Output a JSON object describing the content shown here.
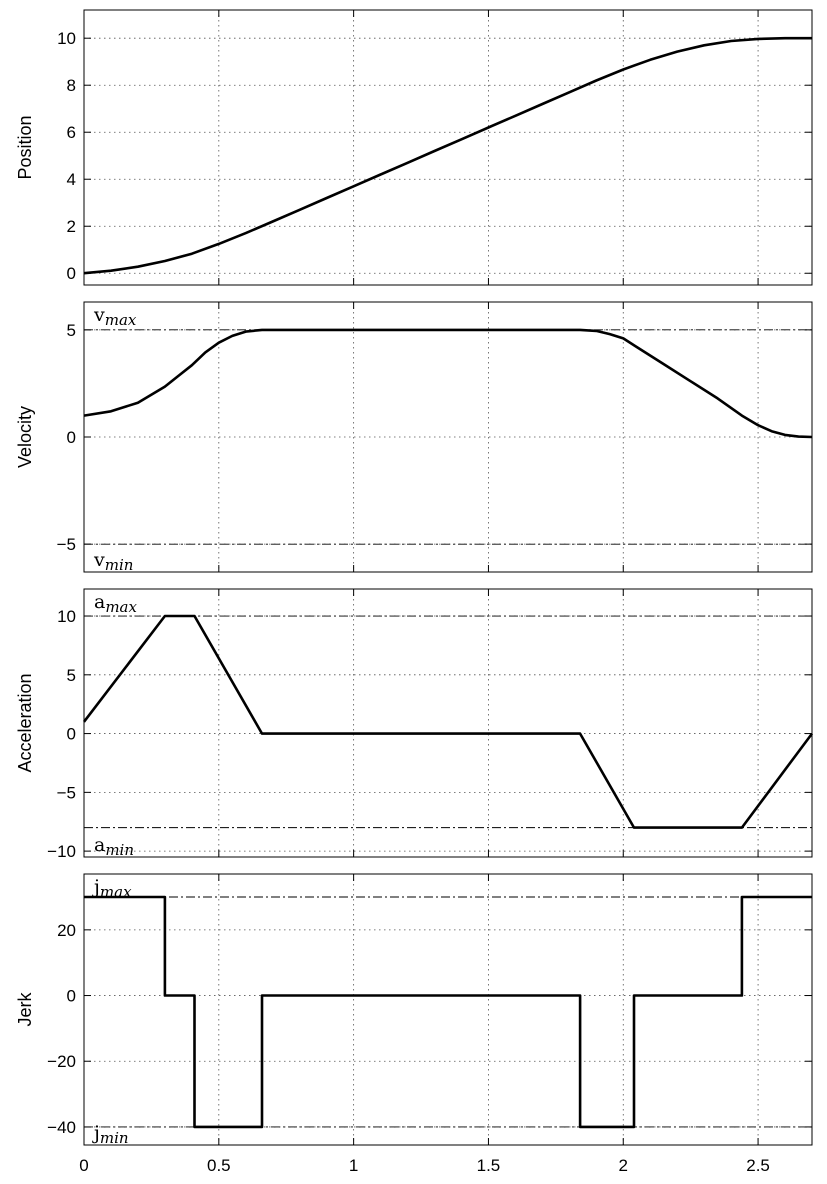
{
  "chart_data": [
    {
      "type": "line",
      "name": "position-panel",
      "ylabel": "Position",
      "xlim": [
        0,
        2.7
      ],
      "ylim": [
        -0.5,
        11.2
      ],
      "grid": true,
      "yticks": [
        0,
        2,
        4,
        6,
        8,
        10
      ],
      "ytick_labels": [
        "0",
        "2",
        "4",
        "6",
        "8",
        "10"
      ],
      "limits": [],
      "series": [
        {
          "x": [
            0,
            0.1,
            0.2,
            0.3,
            0.4,
            0.5,
            0.6,
            0.7,
            0.8,
            0.9,
            1.0,
            1.1,
            1.2,
            1.3,
            1.4,
            1.5,
            1.6,
            1.7,
            1.8,
            1.9,
            2.0,
            2.1,
            2.2,
            2.3,
            2.4,
            2.5,
            2.6,
            2.7
          ],
          "y": [
            0,
            0.11,
            0.28,
            0.52,
            0.83,
            1.25,
            1.71,
            2.2,
            2.7,
            3.2,
            3.7,
            4.2,
            4.7,
            5.2,
            5.7,
            6.2,
            6.7,
            7.2,
            7.7,
            8.2,
            8.67,
            9.08,
            9.43,
            9.7,
            9.88,
            9.97,
            10.0,
            10.0
          ]
        }
      ]
    },
    {
      "type": "line",
      "name": "velocity-panel",
      "ylabel": "Velocity",
      "xlim": [
        0,
        2.7
      ],
      "ylim": [
        -6.3,
        6.3
      ],
      "grid": true,
      "yticks": [
        -5,
        0,
        5
      ],
      "ytick_labels": [
        "−5",
        "0",
        "5"
      ],
      "limits": [
        {
          "value": 5,
          "base": "v",
          "sub": "max",
          "side": "top"
        },
        {
          "value": -5,
          "base": "v",
          "sub": "min",
          "side": "bottom"
        }
      ],
      "series": [
        {
          "x": [
            0,
            0.1,
            0.2,
            0.3,
            0.35,
            0.4,
            0.45,
            0.5,
            0.55,
            0.6,
            0.66,
            1.0,
            1.5,
            1.84,
            1.9,
            1.95,
            2.0,
            2.05,
            2.15,
            2.25,
            2.35,
            2.44,
            2.5,
            2.55,
            2.6,
            2.65,
            2.7
          ],
          "y": [
            1.0,
            1.2,
            1.6,
            2.35,
            2.85,
            3.35,
            3.95,
            4.4,
            4.72,
            4.92,
            5.0,
            5.0,
            5.0,
            5.0,
            4.95,
            4.8,
            4.6,
            4.2,
            3.4,
            2.6,
            1.8,
            1.0,
            0.55,
            0.27,
            0.1,
            0.02,
            0.0
          ]
        }
      ]
    },
    {
      "type": "line",
      "name": "acceleration-panel",
      "ylabel": "Acceleration",
      "xlim": [
        0,
        2.7
      ],
      "ylim": [
        -10.5,
        12.3
      ],
      "grid": true,
      "yticks": [
        -10,
        -5,
        0,
        5,
        10
      ],
      "ytick_labels": [
        "−10",
        "−5",
        "0",
        "5",
        "10"
      ],
      "limits": [
        {
          "value": 10,
          "base": "a",
          "sub": "max",
          "side": "top"
        },
        {
          "value": -8,
          "base": "a",
          "sub": "min",
          "side": "bottom"
        }
      ],
      "series": [
        {
          "x": [
            0,
            0.3,
            0.41,
            0.66,
            1.84,
            2.04,
            2.44,
            2.7
          ],
          "y": [
            1.0,
            10.0,
            10.0,
            0.0,
            0.0,
            -8.0,
            -8.0,
            0.0
          ]
        }
      ]
    },
    {
      "type": "line",
      "name": "jerk-panel",
      "ylabel": "Jerk",
      "xlim": [
        0,
        2.7
      ],
      "ylim": [
        -45.5,
        37
      ],
      "grid": true,
      "yticks": [
        -40,
        -20,
        0,
        20
      ],
      "ytick_labels": [
        "−40",
        "−20",
        "0",
        "20"
      ],
      "xticks": [
        0,
        0.5,
        1,
        1.5,
        2,
        2.5
      ],
      "xtick_labels": [
        "0",
        "0.5",
        "1",
        "1.5",
        "2",
        "2.5"
      ],
      "limits": [
        {
          "value": 30,
          "base": "j",
          "sub": "max",
          "side": "top"
        },
        {
          "value": -40,
          "base": "j",
          "sub": "min",
          "side": "bottom"
        }
      ],
      "series": [
        {
          "x": [
            0,
            0.3,
            0.3,
            0.41,
            0.41,
            0.66,
            0.66,
            1.84,
            1.84,
            2.04,
            2.04,
            2.44,
            2.44,
            2.7
          ],
          "y": [
            30,
            30,
            0,
            0,
            -40,
            -40,
            0,
            0,
            -40,
            -40,
            0,
            0,
            30,
            30
          ]
        }
      ]
    }
  ],
  "shared_xticks": [
    0,
    0.5,
    1,
    1.5,
    2,
    2.5
  ]
}
